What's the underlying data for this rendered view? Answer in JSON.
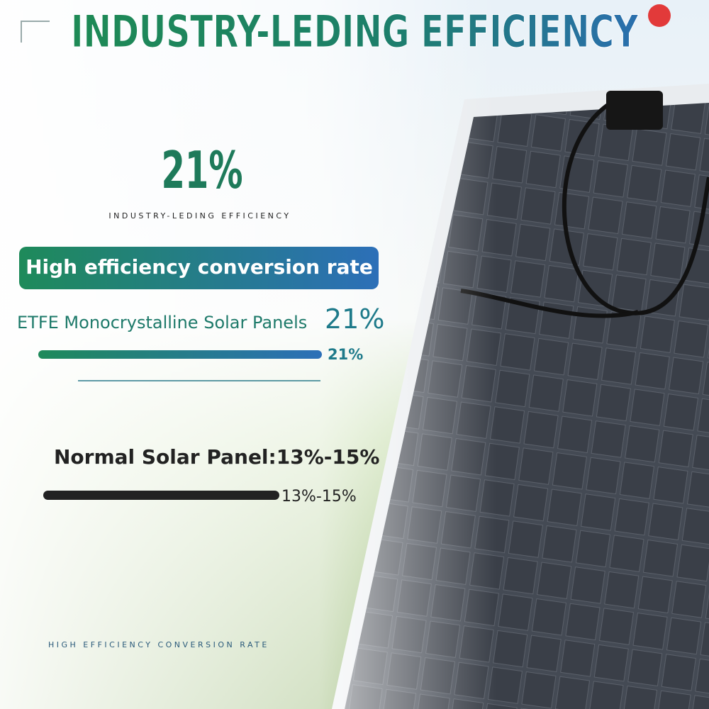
{
  "header": {
    "title": "INDUSTRY-LEDING EFFICIENCY"
  },
  "highlight": {
    "value": "21%",
    "caption": "INDUSTRY-LEDING EFFICIENCY"
  },
  "banner": "High efficiency conversion rate",
  "comparison": [
    {
      "label": "ETFE Monocrystalline Solar Panels",
      "value": "21%",
      "bar_label": "21%"
    },
    {
      "label": "Normal Solar Panel:13%-15%",
      "bar_label": "13%-15%"
    }
  ],
  "footer": "HIGH EFFICIENCY CONVERSION RATE"
}
